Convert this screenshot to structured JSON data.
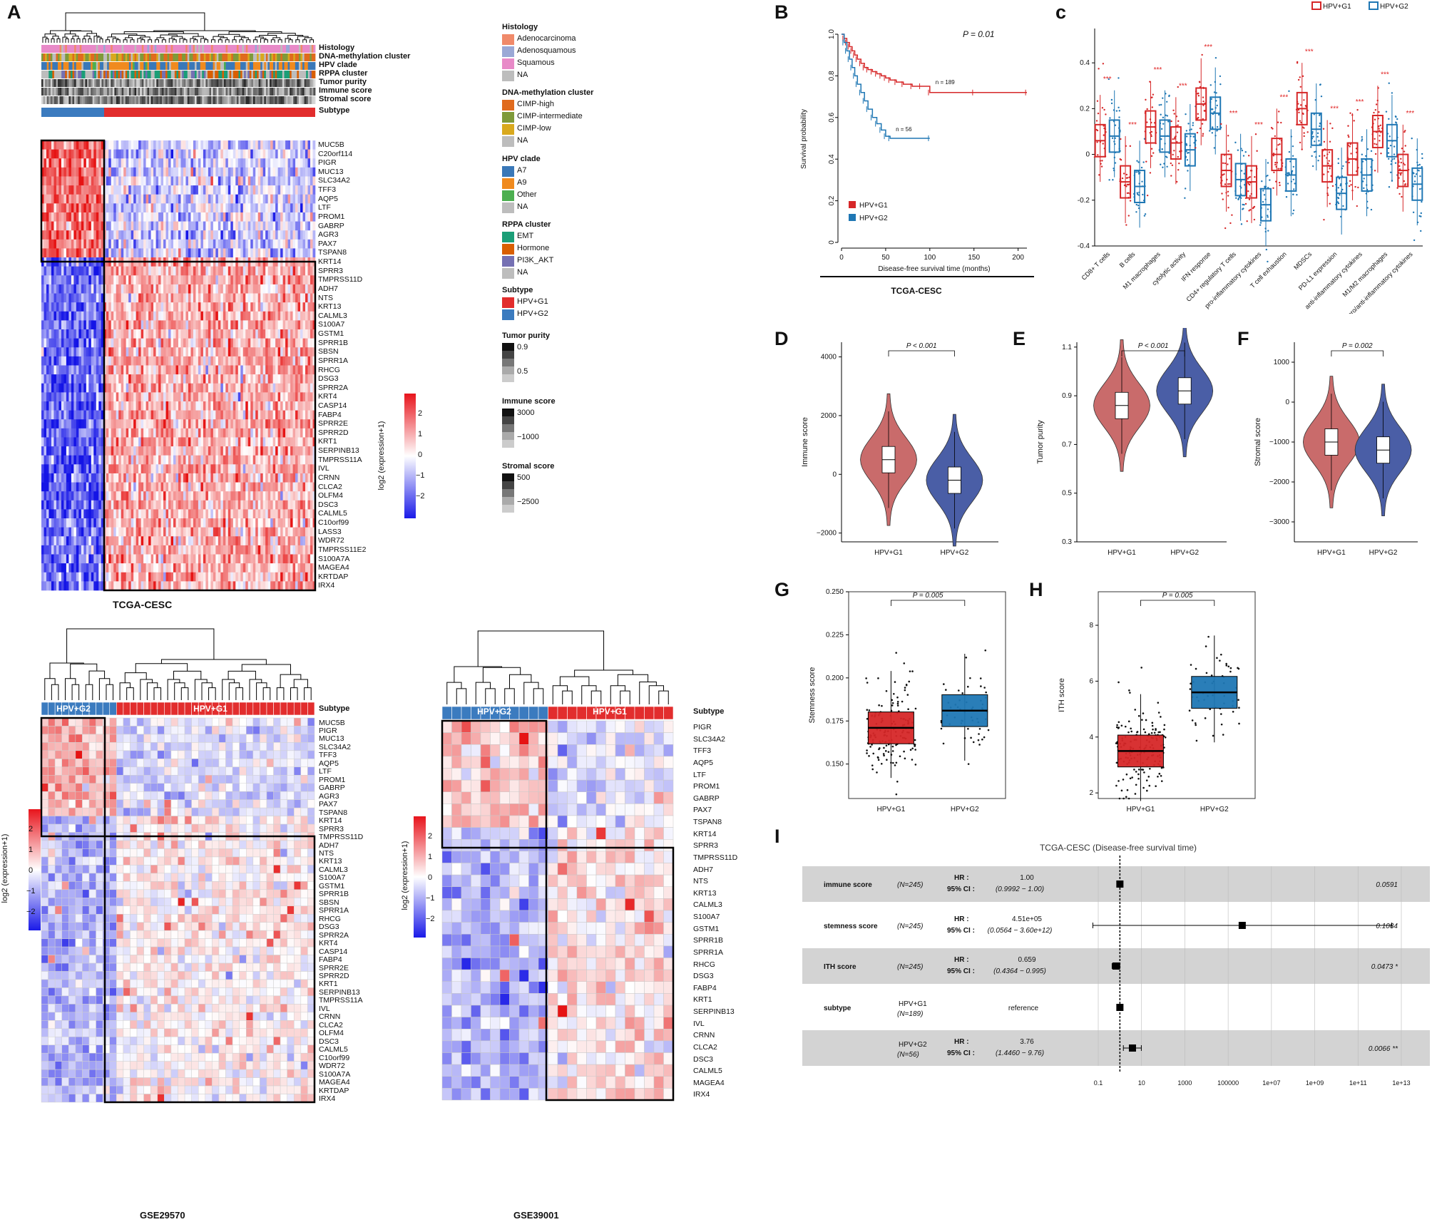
{
  "panels": {
    "A": "A",
    "B": "B",
    "C": "c",
    "D": "D",
    "E": "E",
    "F": "F",
    "G": "G",
    "H": "H",
    "I": "I"
  },
  "heatmap_top": {
    "caption": "TCGA-CESC",
    "annotations": [
      "Histology",
      "DNA-methylation cluster",
      "HPV clade",
      "RPPA cluster",
      "Tumor purity",
      "Immune score",
      "Stromal score",
      "Subtype"
    ],
    "subtype_g2": "HPV+G2",
    "subtype_g1": "HPV+G1",
    "genes": [
      "MUC5B",
      "C20orf114",
      "PIGR",
      "MUC13",
      "SLC34A2",
      "TFF3",
      "AQP5",
      "LTF",
      "PROM1",
      "GABRP",
      "AGR3",
      "PAX7",
      "TSPAN8",
      "KRT14",
      "SPRR3",
      "TMPRSS11D",
      "ADH7",
      "NTS",
      "KRT13",
      "CALML3",
      "S100A7",
      "GSTM1",
      "SPRR1B",
      "SBSN",
      "SPRR1A",
      "RHCG",
      "DSG3",
      "SPRR2A",
      "KRT4",
      "CASP14",
      "FABP4",
      "SPRR2E",
      "SPRR2D",
      "KRT1",
      "SERPINB13",
      "TMPRSS11A",
      "IVL",
      "CRNN",
      "CLCA2",
      "OLFM4",
      "DSC3",
      "CALML5",
      "C10orf99",
      "LASS3",
      "WDR72",
      "TMPRSS11E2",
      "S100A7A",
      "MAGEA4",
      "KRTDAP",
      "IRX4"
    ],
    "scale_label": "log2 (expression+1)",
    "scale_ticks": [
      "2",
      "1",
      "0",
      "−1",
      "−2"
    ]
  },
  "legend": {
    "histology": {
      "title": "Histology",
      "items": [
        {
          "label": "Adenocarcinoma",
          "color": "#f08a6a"
        },
        {
          "label": "Adenosquamous",
          "color": "#9aa8d6"
        },
        {
          "label": "Squamous",
          "color": "#e88ac8"
        },
        {
          "label": "NA",
          "color": "#bdbdbd"
        }
      ]
    },
    "methylation": {
      "title": "DNA-methylation cluster",
      "items": [
        {
          "label": "CIMP-high",
          "color": "#e06b1e"
        },
        {
          "label": "CIMP-intermediate",
          "color": "#7f9a3a"
        },
        {
          "label": "CIMP-low",
          "color": "#d9a91e"
        },
        {
          "label": "NA",
          "color": "#bdbdbd"
        }
      ]
    },
    "clade": {
      "title": "HPV clade",
      "items": [
        {
          "label": "A7",
          "color": "#3a78b8"
        },
        {
          "label": "A9",
          "color": "#f08a1e"
        },
        {
          "label": "Other",
          "color": "#4caf50"
        },
        {
          "label": "NA",
          "color": "#bdbdbd"
        }
      ]
    },
    "rppa": {
      "title": "RPPA cluster",
      "items": [
        {
          "label": "EMT",
          "color": "#1b9e77"
        },
        {
          "label": "Hormone",
          "color": "#d95f02"
        },
        {
          "label": "PI3K_AKT",
          "color": "#7570b3"
        },
        {
          "label": "NA",
          "color": "#bdbdbd"
        }
      ]
    },
    "subtype": {
      "title": "Subtype",
      "items": [
        {
          "label": "HPV+G1",
          "color": "#e22d2d"
        },
        {
          "label": "HPV+G2",
          "color": "#3b7bbf"
        }
      ]
    },
    "purity": {
      "title": "Tumor purity",
      "ticks": [
        "0.9",
        "0.5"
      ]
    },
    "immune": {
      "title": "Immune score",
      "ticks": [
        "3000",
        "−1000"
      ]
    },
    "stromal": {
      "title": "Stromal score",
      "ticks": [
        "500",
        "−2500"
      ]
    }
  },
  "heatmap_gse29570": {
    "caption": "GSE29570",
    "subtype_label": "Subtype",
    "subtype_g2": "HPV+G2",
    "subtype_g1": "HPV+G1",
    "genes": [
      "MUC5B",
      "PIGR",
      "MUC13",
      "SLC34A2",
      "TFF3",
      "AQP5",
      "LTF",
      "PROM1",
      "GABRP",
      "AGR3",
      "PAX7",
      "TSPAN8",
      "KRT14",
      "SPRR3",
      "TMPRSS11D",
      "ADH7",
      "NTS",
      "KRT13",
      "CALML3",
      "S100A7",
      "GSTM1",
      "SPRR1B",
      "SBSN",
      "SPRR1A",
      "RHCG",
      "DSG3",
      "SPRR2A",
      "KRT4",
      "CASP14",
      "FABP4",
      "SPRR2E",
      "SPRR2D",
      "KRT1",
      "SERPINB13",
      "TMPRSS11A",
      "IVL",
      "CRNN",
      "CLCA2",
      "OLFM4",
      "DSC3",
      "CALML5",
      "C10orf99",
      "WDR72",
      "S100A7A",
      "MAGEA4",
      "KRTDAP",
      "IRX4"
    ],
    "scale_label": "log2 (expression+1)",
    "scale_ticks": [
      "2",
      "1",
      "0",
      "−1",
      "−2"
    ]
  },
  "heatmap_gse39001": {
    "caption": "GSE39001",
    "subtype_label": "Subtype",
    "subtype_g2": "HPV+G2",
    "subtype_g1": "HPV+G1",
    "genes": [
      "PIGR",
      "SLC34A2",
      "TFF3",
      "AQP5",
      "LTF",
      "PROM1",
      "GABRP",
      "PAX7",
      "TSPAN8",
      "KRT14",
      "SPRR3",
      "TMPRSS11D",
      "ADH7",
      "NTS",
      "KRT13",
      "CALML3",
      "S100A7",
      "GSTM1",
      "SPRR1B",
      "SPRR1A",
      "RHCG",
      "DSG3",
      "FABP4",
      "KRT1",
      "SERPINB13",
      "IVL",
      "CRNN",
      "CLCA2",
      "DSC3",
      "CALML5",
      "MAGEA4",
      "IRX4"
    ],
    "scale_label": "log2 (expression+1)",
    "scale_ticks": [
      "2",
      "1",
      "0",
      "−1",
      "−2"
    ]
  },
  "chart_data": [
    {
      "panel": "B",
      "type": "line",
      "title": "TCGA-CESC",
      "xlabel": "Disease-free survival time (months)",
      "ylabel": "Survival probability",
      "pvalue": "P =  0.01",
      "xlim": [
        0,
        210
      ],
      "ylim": [
        0,
        1.0
      ],
      "xticks": [
        0,
        50,
        100,
        150,
        200
      ],
      "yticks": [
        "0",
        "0.2",
        "0.4",
        "0.6",
        "0.8",
        "1.0"
      ],
      "series": [
        {
          "name": "HPV+G1",
          "color": "#d62728",
          "n_label": "n = 189",
          "x": [
            0,
            3,
            6,
            9,
            12,
            15,
            18,
            22,
            26,
            30,
            35,
            40,
            45,
            50,
            55,
            62,
            70,
            80,
            90,
            100,
            150,
            210
          ],
          "y": [
            1.0,
            0.98,
            0.96,
            0.94,
            0.92,
            0.9,
            0.88,
            0.86,
            0.84,
            0.83,
            0.82,
            0.81,
            0.8,
            0.79,
            0.78,
            0.77,
            0.76,
            0.75,
            0.75,
            0.72,
            0.72,
            0.72
          ]
        },
        {
          "name": "HPV+G2",
          "color": "#1f77b4",
          "n_label": "n = 56",
          "x": [
            0,
            3,
            6,
            9,
            12,
            15,
            18,
            22,
            26,
            30,
            35,
            40,
            45,
            50,
            55,
            100
          ],
          "y": [
            1.0,
            0.96,
            0.92,
            0.88,
            0.84,
            0.8,
            0.76,
            0.72,
            0.68,
            0.64,
            0.6,
            0.57,
            0.54,
            0.51,
            0.5,
            0.5
          ]
        }
      ]
    },
    {
      "panel": "C",
      "type": "bar",
      "ylim": [
        -0.4,
        0.55
      ],
      "yticks": [
        "0.4",
        "0.2",
        "0",
        "-0.2",
        "-0.4"
      ],
      "legend": [
        "HPV+G1",
        "HPV+G2"
      ],
      "categories": [
        "CD8+ T cells",
        "B cells",
        "M1 macrophages",
        "cytolytic activity",
        "IFN response",
        "CD4+ regulatory T cells",
        "pro-inflammatory cytokines",
        "T cell exhaustion",
        "MDSCs",
        "PD-L1 expression",
        "anti-inflammatory cytokines",
        "M1/M2 macrophages",
        "pro/anti-inflammatory cytokines"
      ],
      "significance": "***",
      "series": [
        {
          "name": "HPV+G1",
          "color": "#d62728",
          "medians": [
            0.06,
            -0.12,
            0.12,
            0.05,
            0.22,
            -0.07,
            -0.12,
            0.0,
            0.2,
            -0.05,
            -0.02,
            0.1,
            -0.07
          ]
        },
        {
          "name": "HPV+G2",
          "color": "#1f77b4",
          "medians": [
            0.08,
            -0.14,
            0.08,
            0.02,
            0.18,
            -0.11,
            -0.22,
            -0.09,
            0.11,
            -0.17,
            -0.09,
            0.06,
            -0.13
          ]
        }
      ]
    },
    {
      "panel": "D",
      "type": "bar",
      "ylabel": "Immune score",
      "pvalue": "P < 0.001",
      "categories": [
        "HPV+G1",
        "HPV+G2"
      ],
      "ylim": [
        -2300,
        4500
      ],
      "yticks": [
        "4000",
        "2000",
        "0",
        "−2000"
      ],
      "medians": [
        500,
        -200
      ],
      "colors": [
        "#c96b6b",
        "#4a5ea6"
      ]
    },
    {
      "panel": "E",
      "type": "bar",
      "ylabel": "Tumor purity",
      "pvalue": "P < 0.001",
      "categories": [
        "HPV+G1",
        "HPV+G2"
      ],
      "ylim": [
        0.3,
        1.12
      ],
      "yticks": [
        "1.1",
        "0.9",
        "0.7",
        "0.5",
        "0.3"
      ],
      "medians": [
        0.86,
        0.92
      ],
      "colors": [
        "#c96b6b",
        "#4a5ea6"
      ]
    },
    {
      "panel": "F",
      "type": "bar",
      "ylabel": "Stromal score",
      "pvalue": "P = 0.002",
      "categories": [
        "HPV+G1",
        "HPV+G2"
      ],
      "ylim": [
        -3500,
        1500
      ],
      "yticks": [
        "1000",
        "0",
        "−1000",
        "−2000",
        "−3000"
      ],
      "medians": [
        -1000,
        -1200
      ],
      "colors": [
        "#c96b6b",
        "#4a5ea6"
      ]
    },
    {
      "panel": "G",
      "type": "bar",
      "ylabel": "Stemness score",
      "pvalue": "P = 0.005",
      "categories": [
        "HPV+G1",
        "HPV+G2"
      ],
      "ylim": [
        0.13,
        0.25
      ],
      "yticks": [
        "0.250",
        "0.225",
        "0.200",
        "0.175",
        "0.150"
      ],
      "medians": [
        0.171,
        0.181
      ],
      "colors": [
        "#d62728",
        "#1f77b4"
      ]
    },
    {
      "panel": "H",
      "type": "bar",
      "ylabel": "ITH score",
      "pvalue": "P = 0.005",
      "categories": [
        "HPV+G1",
        "HPV+G2"
      ],
      "ylim": [
        1.8,
        9.2
      ],
      "yticks": [
        "8",
        "6",
        "4",
        "2"
      ],
      "medians": [
        3.5,
        5.6
      ],
      "colors": [
        "#d62728",
        "#1f77b4"
      ]
    },
    {
      "panel": "I",
      "type": "scatter",
      "title": "TCGA-CESC (Disease-free survival time)",
      "xticks": [
        "0.1",
        "10",
        "1000",
        "100000",
        "1e+07",
        "1e+09",
        "1e+11",
        "1e+13"
      ],
      "rows": [
        {
          "name": "immune score",
          "n": "(N=245)",
          "hr_label": "HR :",
          "ci_label": "95% CI :",
          "hr": "1.00",
          "ci": "(0.9992 − 1.00)",
          "p": "0.0591",
          "log10_hr": 0.0,
          "log10_lo": 0.0,
          "log10_hi": 0.0
        },
        {
          "name": "stemness score",
          "n": "(N=245)",
          "hr_label": "HR :",
          "ci_label": "95% CI :",
          "hr": "4.51e+05",
          "ci": "(0.0564 − 3.60e+12)",
          "p": "0.1084",
          "log10_hr": 5.65,
          "log10_lo": -1.25,
          "log10_hi": 12.56
        },
        {
          "name": "ITH score",
          "n": "(N=245)",
          "hr_label": "HR :",
          "ci_label": "95% CI :",
          "hr": "0.659",
          "ci": "(0.4364 − 0.995)",
          "p": "0.0473 *",
          "log10_hr": -0.18,
          "log10_lo": -0.36,
          "log10_hi": 0.0
        },
        {
          "name": "subtype",
          "group": "HPV+G1",
          "n": "(N=189)",
          "hr": "reference",
          "p": "",
          "log10_hr": 0.0
        },
        {
          "name": "",
          "group": "HPV+G2",
          "n": "(N=56)",
          "hr_label": "HR :",
          "ci_label": "95% CI :",
          "hr": "3.76",
          "ci": "(1.4460 − 9.76)",
          "p": "0.0066 **",
          "log10_hr": 0.58,
          "log10_lo": 0.16,
          "log10_hi": 0.99
        }
      ]
    }
  ]
}
